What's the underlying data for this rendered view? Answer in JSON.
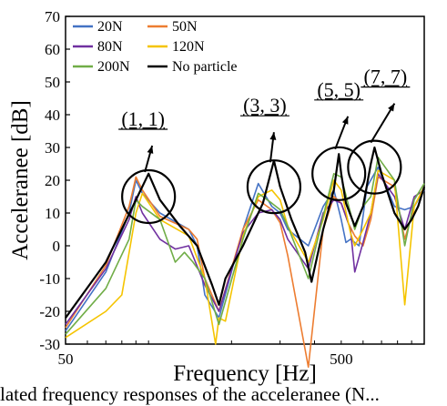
{
  "chart_data": {
    "type": "line",
    "xlabel": "Frequency [Hz]",
    "ylabel": "Acceleranee [dB]",
    "x_scale": "log",
    "xlim": [
      50,
      1000
    ],
    "ylim": [
      -30,
      70
    ],
    "x_tick_labels": [
      {
        "value": 50,
        "label": "50"
      },
      {
        "value": 500,
        "label": "500"
      }
    ],
    "y_ticks": [
      -30,
      -20,
      -10,
      0,
      10,
      20,
      30,
      40,
      50,
      60,
      70
    ],
    "legend_placement": "top-left",
    "series": [
      {
        "name": "20N",
        "color": "#4472c4",
        "x": [
          50,
          70,
          85,
          90,
          95,
          110,
          140,
          150,
          160,
          180,
          220,
          250,
          280,
          300,
          320,
          380,
          430,
          470,
          480,
          500,
          520,
          540,
          560,
          580,
          620,
          680,
          780,
          850,
          920,
          1000
        ],
        "y": [
          -26,
          -8,
          10,
          20,
          16,
          10,
          5,
          0,
          -15,
          -22,
          5,
          19,
          12,
          10,
          5,
          0,
          12,
          17,
          14,
          8,
          1,
          2,
          1,
          0,
          18,
          24,
          12,
          11,
          12,
          17
        ]
      },
      {
        "name": "50N",
        "color": "#ed7d31",
        "x": [
          50,
          70,
          85,
          90,
          95,
          110,
          140,
          150,
          160,
          180,
          220,
          250,
          280,
          300,
          320,
          380,
          430,
          470,
          500,
          530,
          560,
          600,
          640,
          680,
          780,
          850,
          920,
          1000
        ],
        "y": [
          -25,
          -6,
          12,
          21,
          17,
          9,
          5,
          2,
          -10,
          -20,
          5,
          14,
          11,
          7,
          -3,
          -37,
          5,
          15,
          13,
          7,
          3,
          0,
          8,
          21,
          18,
          2,
          12,
          18
        ]
      },
      {
        "name": "80N",
        "color": "#7030a0",
        "x": [
          50,
          70,
          85,
          90,
          95,
          110,
          125,
          140,
          160,
          180,
          220,
          250,
          280,
          300,
          320,
          380,
          430,
          470,
          500,
          540,
          560,
          600,
          640,
          680,
          780,
          850,
          920,
          1000
        ],
        "y": [
          -24,
          -7,
          8,
          15,
          10,
          2,
          -1,
          0,
          -12,
          -20,
          4,
          10,
          11,
          8,
          2,
          -7,
          10,
          14,
          13,
          5,
          -8,
          1,
          10,
          22,
          15,
          5,
          15,
          17
        ]
      },
      {
        "name": "120N",
        "color": "#f5c400",
        "x": [
          50,
          70,
          80,
          90,
          95,
          110,
          140,
          160,
          175,
          180,
          190,
          220,
          250,
          280,
          300,
          320,
          380,
          430,
          470,
          500,
          540,
          560,
          600,
          640,
          680,
          780,
          850,
          920,
          1000
        ],
        "y": [
          -28,
          -20,
          -15,
          10,
          16,
          8,
          3,
          -10,
          -30,
          -22,
          -23,
          3,
          15,
          17,
          14,
          6,
          -5,
          8,
          20,
          17,
          4,
          0,
          5,
          10,
          23,
          20,
          -18,
          12,
          18
        ]
      },
      {
        "name": "200N",
        "color": "#70ad47",
        "x": [
          50,
          70,
          85,
          90,
          95,
          110,
          125,
          135,
          145,
          160,
          180,
          220,
          250,
          280,
          300,
          320,
          380,
          430,
          470,
          500,
          540,
          560,
          600,
          640,
          680,
          780,
          850,
          920,
          1000
        ],
        "y": [
          -27,
          -13,
          2,
          14,
          12,
          8,
          -5,
          -2,
          -5,
          -10,
          -24,
          2,
          16,
          13,
          11,
          6,
          -10,
          9,
          22,
          21,
          10,
          5,
          12,
          15,
          27,
          20,
          0,
          14,
          19
        ]
      },
      {
        "name": "No particle",
        "color": "#000000",
        "x": [
          50,
          70,
          90,
          100,
          110,
          130,
          150,
          170,
          180,
          190,
          220,
          260,
          285,
          300,
          330,
          370,
          390,
          430,
          470,
          490,
          500,
          520,
          560,
          600,
          640,
          660,
          700,
          780,
          850,
          900,
          950,
          1000
        ],
        "y": [
          -22,
          -5,
          14,
          22,
          14,
          6,
          0,
          -12,
          -18,
          -10,
          0,
          13,
          26,
          18,
          8,
          -2,
          -11,
          5,
          17,
          28,
          22,
          13,
          6,
          12,
          25,
          30,
          22,
          10,
          5,
          8,
          12,
          18
        ]
      }
    ],
    "annotations": [
      {
        "label": "(1, 1)",
        "x": 100,
        "y": 15
      },
      {
        "label": "(3, 3)",
        "x": 285,
        "y": 18
      },
      {
        "label": "(5, 5)",
        "x": 490,
        "y": 22
      },
      {
        "label": "(7, 7)",
        "x": 660,
        "y": 24
      }
    ]
  },
  "caption_fragment": "lated frequency responses of the acceleranee (N..."
}
